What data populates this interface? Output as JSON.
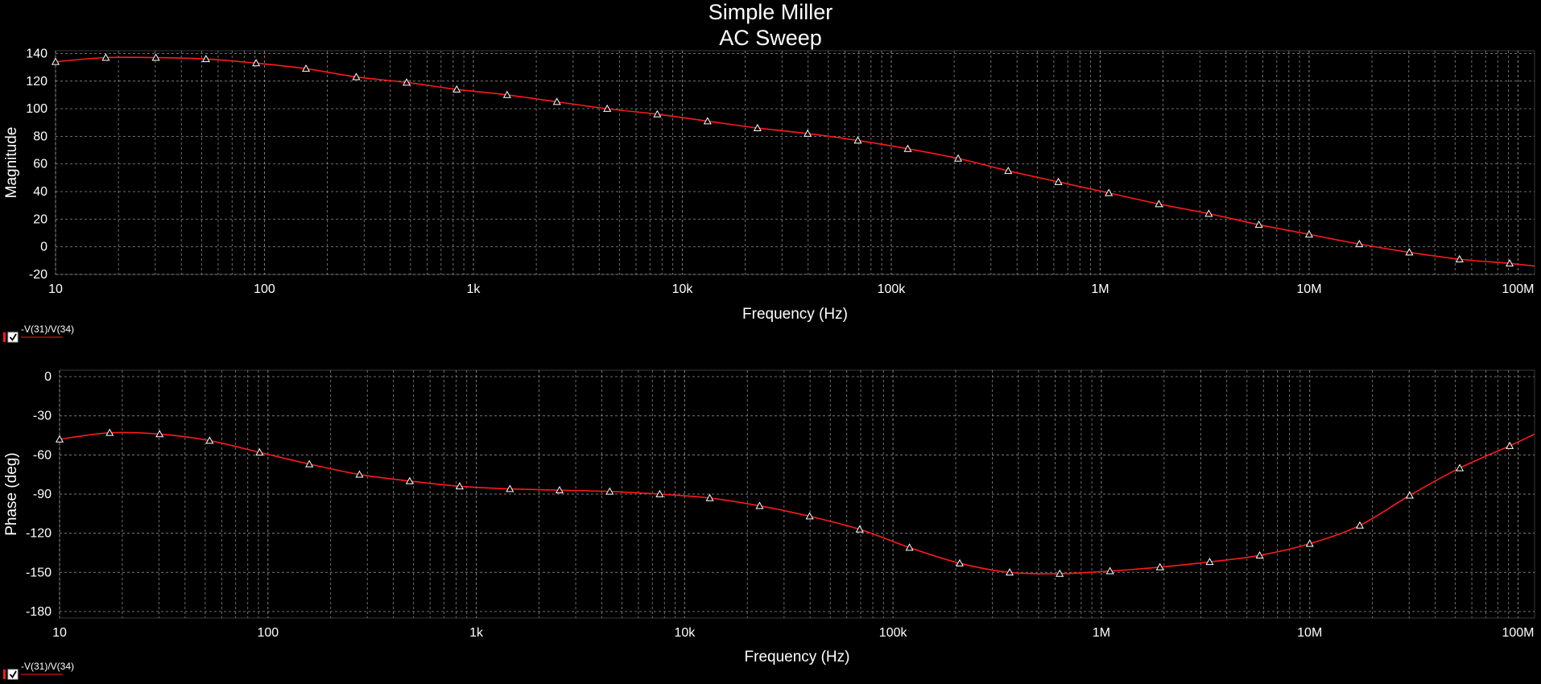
{
  "title": "Simple Miller",
  "subtitle": "AC Sweep",
  "colors": {
    "background": "#000000",
    "trace": "#ff1a1a",
    "grid": "#9a9a9a",
    "text": "#ffffff",
    "marker": "#ffffff"
  },
  "icons": {
    "legend_checkbox": "checkbox-checked-icon",
    "marker": "triangle-marker-icon"
  },
  "chart_data": [
    {
      "type": "line",
      "xscale": "log",
      "xlabel": "Frequency (Hz)",
      "ylabel": "Magnitude",
      "xlim": [
        10,
        120000000
      ],
      "ylim": [
        -20,
        142
      ],
      "grid": true,
      "x_ticks": [
        10,
        100,
        1000,
        10000,
        100000,
        1000000,
        10000000,
        100000000
      ],
      "x_tick_labels": [
        "10",
        "100",
        "1k",
        "10k",
        "100k",
        "1M",
        "10M",
        "100M"
      ],
      "y_ticks": [
        140,
        120,
        100,
        80,
        60,
        40,
        20,
        0,
        -20
      ],
      "y_tick_labels": [
        "140",
        "120",
        "100",
        "80",
        "60",
        "40",
        "20",
        "0",
        "-20"
      ],
      "legend": {
        "label": "-V(31)/V(34)",
        "checked": true,
        "position": "bottom-left"
      },
      "series": [
        {
          "name": "-V(31)/V(34)",
          "x": [
            10,
            17.4,
            30.2,
            52.5,
            91.2,
            158,
            275,
            479,
            832,
            1450,
            2510,
            4370,
            7590,
            13200,
            22900,
            39800,
            69200,
            120000,
            209000,
            363000,
            631000,
            1100000,
            1910000,
            3310000,
            5750000,
            10000000,
            17400000,
            30200000,
            52500000,
            91200000,
            120000000
          ],
          "values": [
            134,
            137,
            137,
            136,
            133,
            129,
            123,
            119,
            114,
            110,
            105,
            100,
            96,
            91,
            86,
            82,
            77,
            71,
            64,
            55,
            47,
            39,
            31,
            24,
            16,
            9,
            2,
            -4,
            -9,
            -12,
            -14
          ],
          "marker_x": [
            10,
            17.4,
            30.2,
            52.5,
            91.2,
            158,
            275,
            479,
            832,
            1450,
            2510,
            4370,
            7590,
            13200,
            22900,
            39800,
            69200,
            120000,
            209000,
            363000,
            631000,
            1100000,
            1910000,
            3310000,
            5750000,
            10000000,
            17400000,
            30200000,
            52500000,
            91200000
          ]
        }
      ]
    },
    {
      "type": "line",
      "xscale": "log",
      "xlabel": "Frequency (Hz)",
      "ylabel": "Phase (deg)",
      "xlim": [
        10,
        120000000
      ],
      "ylim": [
        -185,
        5
      ],
      "grid": true,
      "x_ticks": [
        10,
        100,
        1000,
        10000,
        100000,
        1000000,
        10000000,
        100000000
      ],
      "x_tick_labels": [
        "10",
        "100",
        "1k",
        "10k",
        "100k",
        "1M",
        "10M",
        "100M"
      ],
      "y_ticks": [
        0,
        -30,
        -60,
        -90,
        -120,
        -150,
        -180
      ],
      "y_tick_labels": [
        "0",
        "-30",
        "-60",
        "-90",
        "-120",
        "-150",
        "-180"
      ],
      "legend": {
        "label": "-V(31)/V(34)",
        "checked": true,
        "position": "bottom-left"
      },
      "series": [
        {
          "name": "-V(31)/V(34)",
          "x": [
            10,
            17.4,
            30.2,
            52.5,
            91.2,
            158,
            275,
            479,
            832,
            1450,
            2510,
            4370,
            7590,
            13200,
            22900,
            39800,
            69200,
            120000,
            209000,
            363000,
            631000,
            1100000,
            1910000,
            3310000,
            5750000,
            10000000,
            17400000,
            30200000,
            52500000,
            91200000,
            120000000
          ],
          "values": [
            -48,
            -43,
            -44,
            -49,
            -58,
            -67,
            -75,
            -80,
            -84,
            -86,
            -87,
            -88,
            -90,
            -93,
            -99,
            -107,
            -117,
            -131,
            -143,
            -150,
            -151,
            -149,
            -146,
            -142,
            -137,
            -128,
            -114,
            -91,
            -70,
            -53,
            -44
          ],
          "marker_x": [
            10,
            17.4,
            30.2,
            52.5,
            91.2,
            158,
            275,
            479,
            832,
            1450,
            2510,
            4370,
            7590,
            13200,
            22900,
            39800,
            69200,
            120000,
            209000,
            363000,
            631000,
            1100000,
            1910000,
            3310000,
            5750000,
            10000000,
            17400000,
            30200000,
            52500000,
            91200000
          ]
        }
      ]
    }
  ]
}
